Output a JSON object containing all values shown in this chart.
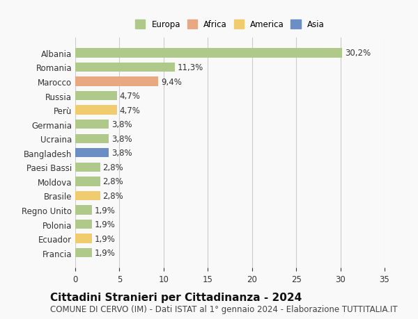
{
  "categories": [
    "Albania",
    "Romania",
    "Marocco",
    "Russia",
    "Perù",
    "Germania",
    "Ucraina",
    "Bangladesh",
    "Paesi Bassi",
    "Moldova",
    "Brasile",
    "Regno Unito",
    "Polonia",
    "Ecuador",
    "Francia"
  ],
  "values": [
    30.2,
    11.3,
    9.4,
    4.7,
    4.7,
    3.8,
    3.8,
    3.8,
    2.8,
    2.8,
    2.8,
    1.9,
    1.9,
    1.9,
    1.9
  ],
  "labels": [
    "30,2%",
    "11,3%",
    "9,4%",
    "4,7%",
    "4,7%",
    "3,8%",
    "3,8%",
    "3,8%",
    "2,8%",
    "2,8%",
    "2,8%",
    "1,9%",
    "1,9%",
    "1,9%",
    "1,9%"
  ],
  "continents": [
    "Europa",
    "Europa",
    "Africa",
    "Europa",
    "America",
    "Europa",
    "Europa",
    "Asia",
    "Europa",
    "Europa",
    "America",
    "Europa",
    "Europa",
    "America",
    "Europa"
  ],
  "colors": {
    "Europa": "#aec98a",
    "Africa": "#e8a882",
    "America": "#f0cc6e",
    "Asia": "#6b8fc4"
  },
  "legend_order": [
    "Europa",
    "Africa",
    "America",
    "Asia"
  ],
  "title": "Cittadini Stranieri per Cittadinanza - 2024",
  "subtitle": "COMUNE DI CERVO (IM) - Dati ISTAT al 1° gennaio 2024 - Elaborazione TUTTITALIA.IT",
  "xlim": [
    0,
    35
  ],
  "xticks": [
    0,
    5,
    10,
    15,
    20,
    25,
    30,
    35
  ],
  "background_color": "#f9f9f9",
  "grid_color": "#cccccc",
  "title_fontsize": 11,
  "subtitle_fontsize": 8.5,
  "label_fontsize": 8.5,
  "tick_fontsize": 8.5
}
